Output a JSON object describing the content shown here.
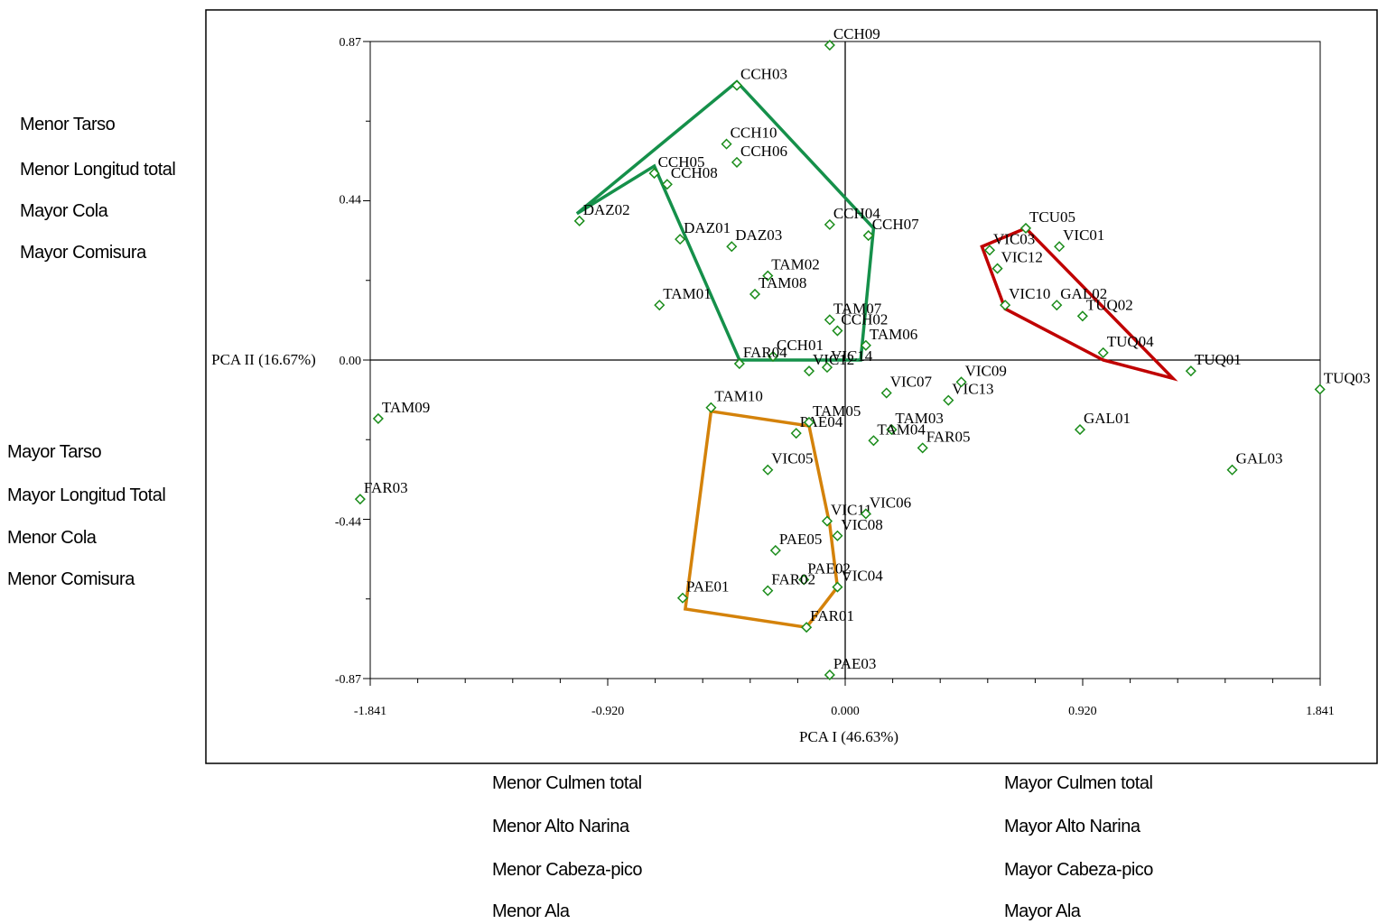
{
  "chart_data": {
    "type": "scatter",
    "xlabel": "PCA I (46.63%)",
    "ylabel": "PCA II (16.67%)",
    "xlim": [
      -1.841,
      1.841
    ],
    "ylim": [
      -0.87,
      0.87
    ],
    "xticks": [
      -1.841,
      -0.92,
      0.0,
      0.92,
      1.841
    ],
    "xtick_labels": [
      "-1.841",
      "-0.920",
      "0.000",
      "0.920",
      "1.841"
    ],
    "yticks": [
      0.87,
      0.44,
      0.0,
      -0.44,
      -0.87
    ],
    "ytick_labels": [
      "0.87",
      "0.44",
      "0.00",
      "-0.44",
      "-0.87"
    ],
    "grid": false,
    "marker_color": "#1a8c1a",
    "points": [
      {
        "label": "CCH09",
        "x": -0.06,
        "y": 0.86
      },
      {
        "label": "CCH03",
        "x": -0.42,
        "y": 0.75
      },
      {
        "label": "CCH10",
        "x": -0.46,
        "y": 0.59
      },
      {
        "label": "CCH06",
        "x": -0.42,
        "y": 0.54
      },
      {
        "label": "CCH05",
        "x": -0.74,
        "y": 0.51
      },
      {
        "label": "CCH08",
        "x": -0.69,
        "y": 0.48
      },
      {
        "label": "DAZ02",
        "x": -1.03,
        "y": 0.38
      },
      {
        "label": "DAZ01",
        "x": -0.64,
        "y": 0.33
      },
      {
        "label": "DAZ03",
        "x": -0.44,
        "y": 0.31
      },
      {
        "label": "CCH04",
        "x": -0.06,
        "y": 0.37
      },
      {
        "label": "CCH07",
        "x": 0.09,
        "y": 0.34
      },
      {
        "label": "TAM02",
        "x": -0.3,
        "y": 0.23
      },
      {
        "label": "TAM08",
        "x": -0.35,
        "y": 0.18
      },
      {
        "label": "TAM01",
        "x": -0.72,
        "y": 0.15
      },
      {
        "label": "TAM07",
        "x": -0.06,
        "y": 0.11
      },
      {
        "label": "CCH02",
        "x": -0.03,
        "y": 0.08
      },
      {
        "label": "TAM06",
        "x": 0.08,
        "y": 0.04
      },
      {
        "label": "CCH01",
        "x": -0.28,
        "y": 0.01
      },
      {
        "label": "FAR04",
        "x": -0.41,
        "y": -0.01
      },
      {
        "label": "VIC12",
        "x": -0.14,
        "y": -0.03
      },
      {
        "label": "VIC14",
        "x": -0.07,
        "y": -0.02
      },
      {
        "label": "TAM09",
        "x": -1.81,
        "y": -0.16
      },
      {
        "label": "TAM10",
        "x": -0.52,
        "y": -0.13
      },
      {
        "label": "PAE04",
        "x": -0.19,
        "y": -0.2
      },
      {
        "label": "TAM05",
        "x": -0.14,
        "y": -0.17
      },
      {
        "label": "VIC07",
        "x": 0.16,
        "y": -0.09
      },
      {
        "label": "VIC13",
        "x": 0.4,
        "y": -0.11
      },
      {
        "label": "VIC09",
        "x": 0.45,
        "y": -0.06
      },
      {
        "label": "TAM03",
        "x": 0.18,
        "y": -0.19
      },
      {
        "label": "TAM04",
        "x": 0.11,
        "y": -0.22
      },
      {
        "label": "FAR05",
        "x": 0.3,
        "y": -0.24
      },
      {
        "label": "GAL01",
        "x": 0.91,
        "y": -0.19
      },
      {
        "label": "GAL03",
        "x": 1.5,
        "y": -0.3
      },
      {
        "label": "TUQ03",
        "x": 1.84,
        "y": -0.08
      },
      {
        "label": "TUQ01",
        "x": 1.34,
        "y": -0.03
      },
      {
        "label": "TUQ04",
        "x": 1.0,
        "y": 0.02
      },
      {
        "label": "TUQ02",
        "x": 0.92,
        "y": 0.12
      },
      {
        "label": "GAL02",
        "x": 0.82,
        "y": 0.15
      },
      {
        "label": "VIC10",
        "x": 0.62,
        "y": 0.15
      },
      {
        "label": "VIC12",
        "x": 0.59,
        "y": 0.25
      },
      {
        "label": "VIC03",
        "x": 0.56,
        "y": 0.3
      },
      {
        "label": "VIC01",
        "x": 0.83,
        "y": 0.31
      },
      {
        "label": "TCU05",
        "x": 0.7,
        "y": 0.36
      },
      {
        "label": "VIC05",
        "x": -0.3,
        "y": -0.3
      },
      {
        "label": "FAR03",
        "x": -1.88,
        "y": -0.38
      },
      {
        "label": "VIC11",
        "x": -0.07,
        "y": -0.44
      },
      {
        "label": "VIC08",
        "x": -0.03,
        "y": -0.48
      },
      {
        "label": "VIC06",
        "x": 0.08,
        "y": -0.42
      },
      {
        "label": "PAE05",
        "x": -0.27,
        "y": -0.52
      },
      {
        "label": "PAE02",
        "x": -0.16,
        "y": -0.6
      },
      {
        "label": "FAR02",
        "x": -0.3,
        "y": -0.63
      },
      {
        "label": "VIC04",
        "x": -0.03,
        "y": -0.62
      },
      {
        "label": "PAE01",
        "x": -0.63,
        "y": -0.65
      },
      {
        "label": "FAR01",
        "x": -0.15,
        "y": -0.73
      },
      {
        "label": "PAE03",
        "x": -0.06,
        "y": -0.86
      }
    ],
    "polygons": [
      {
        "color": "#15904a",
        "vertices": [
          [
            -1.04,
            0.4
          ],
          [
            -0.42,
            0.76
          ],
          [
            0.11,
            0.36
          ],
          [
            0.06,
            0.0
          ],
          [
            -0.41,
            0.0
          ],
          [
            -0.74,
            0.53
          ]
        ]
      },
      {
        "color": "#c00000",
        "vertices": [
          [
            0.53,
            0.31
          ],
          [
            0.7,
            0.36
          ],
          [
            1.27,
            -0.05
          ],
          [
            1.0,
            0.0
          ],
          [
            0.62,
            0.14
          ]
        ]
      },
      {
        "color": "#d4820a",
        "vertices": [
          [
            -0.52,
            -0.14
          ],
          [
            -0.14,
            -0.18
          ],
          [
            -0.06,
            -0.45
          ],
          [
            -0.03,
            -0.62
          ],
          [
            -0.15,
            -0.73
          ],
          [
            -0.62,
            -0.68
          ]
        ]
      }
    ]
  },
  "side_labels": {
    "left_top": [
      "Menor Tarso",
      "Menor Longitud total",
      "Mayor Cola",
      "Mayor Comisura"
    ],
    "left_bottom": [
      "Mayor Tarso",
      "Mayor Longitud Total",
      "Menor Cola",
      "Menor Comisura"
    ],
    "bottom_left": [
      "Menor Culmen total",
      "Menor Alto Narina",
      "Menor Cabeza-pico",
      "Menor Ala"
    ],
    "bottom_right": [
      "Mayor Culmen total",
      "Mayor Alto Narina",
      "Mayor Cabeza-pico",
      "Mayor Ala"
    ]
  }
}
